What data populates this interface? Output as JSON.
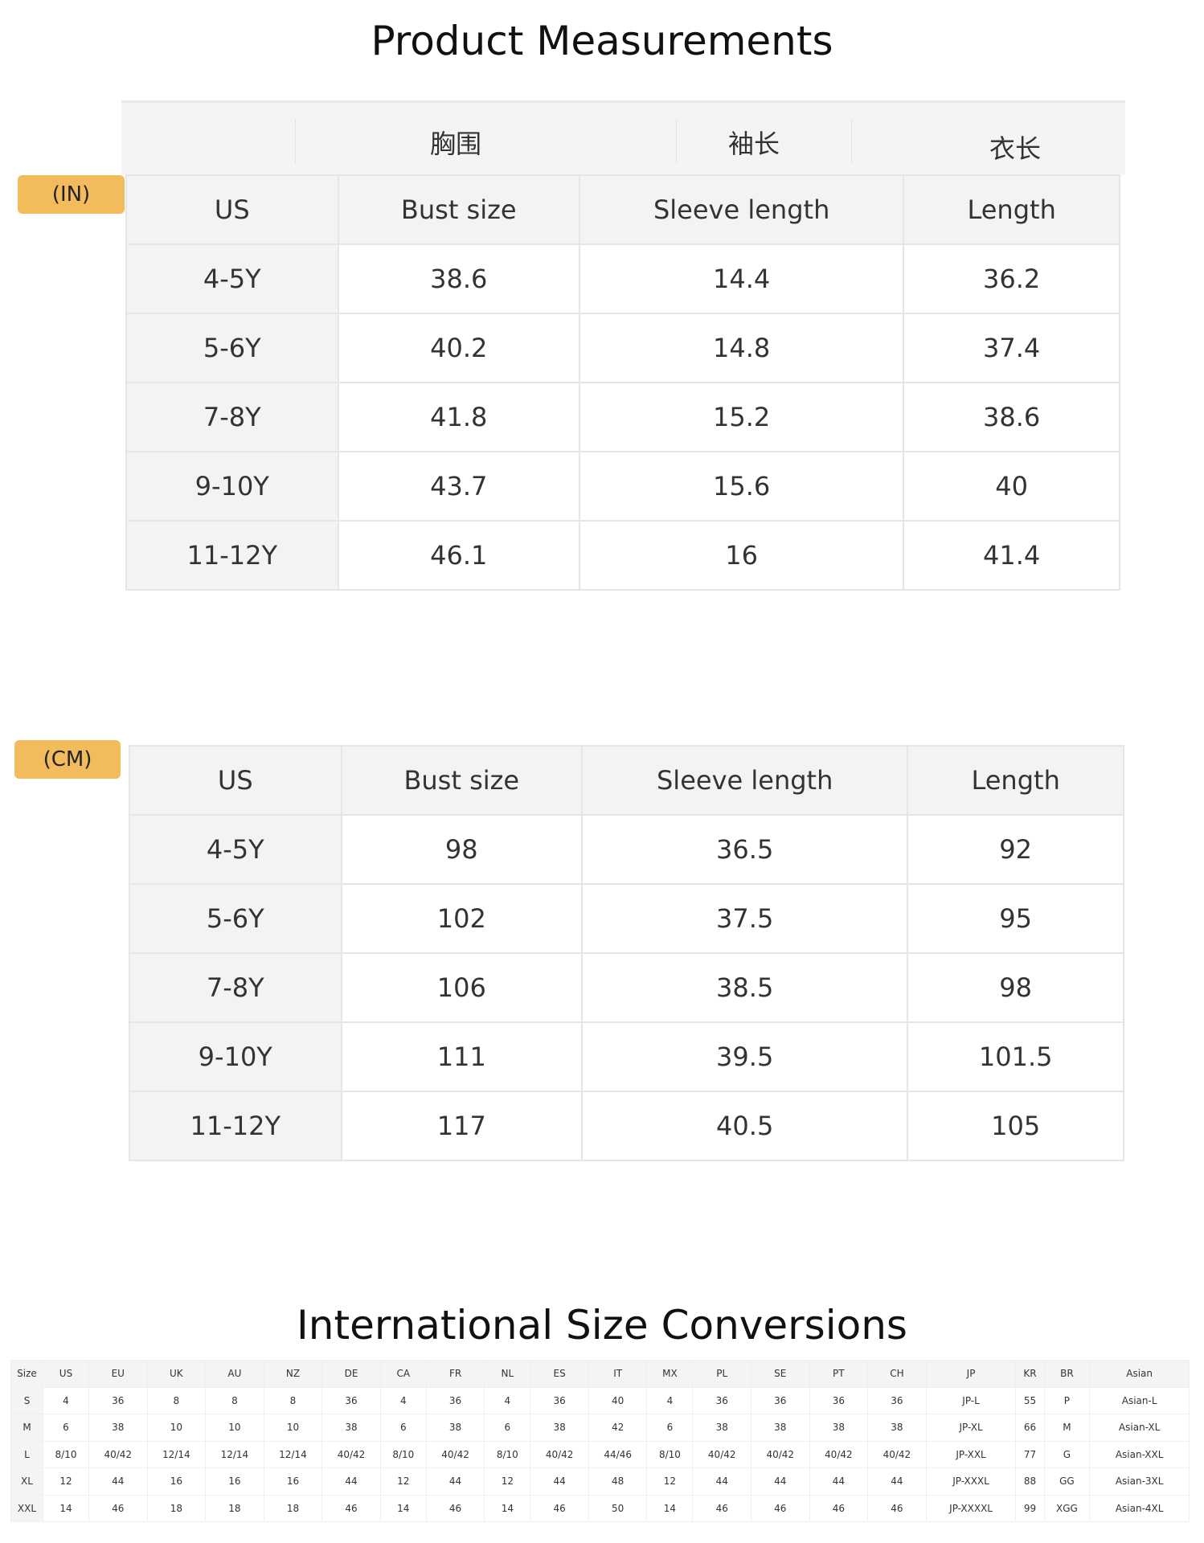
{
  "title": "Product Measurements",
  "chinese_headers": [
    "胸围",
    "袖长",
    "衣长"
  ],
  "inch": {
    "badge": "(IN)",
    "headers": [
      "US",
      "Bust size",
      "Sleeve length",
      "Length"
    ],
    "rows": [
      [
        "4-5Y",
        "38.6",
        "14.4",
        "36.2"
      ],
      [
        "5-6Y",
        "40.2",
        "14.8",
        "37.4"
      ],
      [
        "7-8Y",
        "41.8",
        "15.2",
        "38.6"
      ],
      [
        "9-10Y",
        "43.7",
        "15.6",
        "40"
      ],
      [
        "11-12Y",
        "46.1",
        "16",
        "41.4"
      ]
    ]
  },
  "cm": {
    "badge": "(CM)",
    "headers": [
      "US",
      "Bust size",
      "Sleeve length",
      "Length"
    ],
    "rows": [
      [
        "4-5Y",
        "98",
        "36.5",
        "92"
      ],
      [
        "5-6Y",
        "102",
        "37.5",
        "95"
      ],
      [
        "7-8Y",
        "106",
        "38.5",
        "98"
      ],
      [
        "9-10Y",
        "111",
        "39.5",
        "101.5"
      ],
      [
        "11-12Y",
        "117",
        "40.5",
        "105"
      ]
    ]
  },
  "intl": {
    "title": "International Size Conversions",
    "headers": [
      "Size",
      "US",
      "EU",
      "UK",
      "AU",
      "NZ",
      "DE",
      "CA",
      "FR",
      "NL",
      "ES",
      "IT",
      "MX",
      "PL",
      "SE",
      "PT",
      "CH",
      "JP",
      "KR",
      "BR",
      "Asian"
    ],
    "rows": [
      [
        "S",
        "4",
        "36",
        "8",
        "8",
        "8",
        "36",
        "4",
        "36",
        "4",
        "36",
        "40",
        "4",
        "36",
        "36",
        "36",
        "36",
        "JP-L",
        "55",
        "P",
        "Asian-L"
      ],
      [
        "M",
        "6",
        "38",
        "10",
        "10",
        "10",
        "38",
        "6",
        "38",
        "6",
        "38",
        "42",
        "6",
        "38",
        "38",
        "38",
        "38",
        "JP-XL",
        "66",
        "M",
        "Asian-XL"
      ],
      [
        "L",
        "8/10",
        "40/42",
        "12/14",
        "12/14",
        "12/14",
        "40/42",
        "8/10",
        "40/42",
        "8/10",
        "40/42",
        "44/46",
        "8/10",
        "40/42",
        "40/42",
        "40/42",
        "40/42",
        "JP-XXL",
        "77",
        "G",
        "Asian-XXL"
      ],
      [
        "XL",
        "12",
        "44",
        "16",
        "16",
        "16",
        "44",
        "12",
        "44",
        "12",
        "44",
        "48",
        "12",
        "44",
        "44",
        "44",
        "44",
        "JP-XXXL",
        "88",
        "GG",
        "Asian-3XL"
      ],
      [
        "XXL",
        "14",
        "46",
        "18",
        "18",
        "18",
        "46",
        "14",
        "46",
        "14",
        "46",
        "50",
        "14",
        "46",
        "46",
        "46",
        "46",
        "JP-XXXXL",
        "99",
        "XGG",
        "Asian-4XL"
      ]
    ]
  },
  "colors": {
    "badge": "#f2bb5c",
    "header_bg": "#f3f3f3"
  }
}
